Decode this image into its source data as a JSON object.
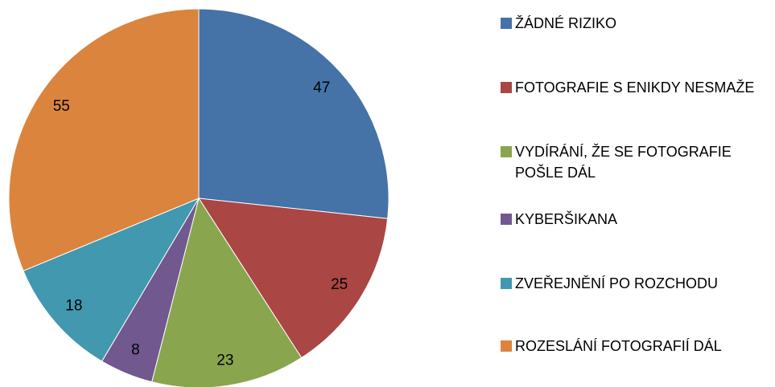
{
  "chart_data": {
    "type": "pie",
    "categories": [
      "ŽÁDNÉ RIZIKO",
      "FOTOGRAFIE S ENIKDY NESMAŽE",
      "VYDÍRÁNÍ, ŽE SE FOTOGRAFIE POŠLE DÁL",
      "KYBERŠIKANA",
      "ZVEŘEJNĚNÍ PO ROZCHODU",
      "ROZESLÁNÍ FOTOGRAFIÍ DÁL"
    ],
    "values": [
      47,
      25,
      23,
      8,
      18,
      55
    ],
    "colors": [
      "#4572a7",
      "#aa4643",
      "#89a54e",
      "#71588f",
      "#4198af",
      "#db843d"
    ],
    "legend": "right"
  }
}
